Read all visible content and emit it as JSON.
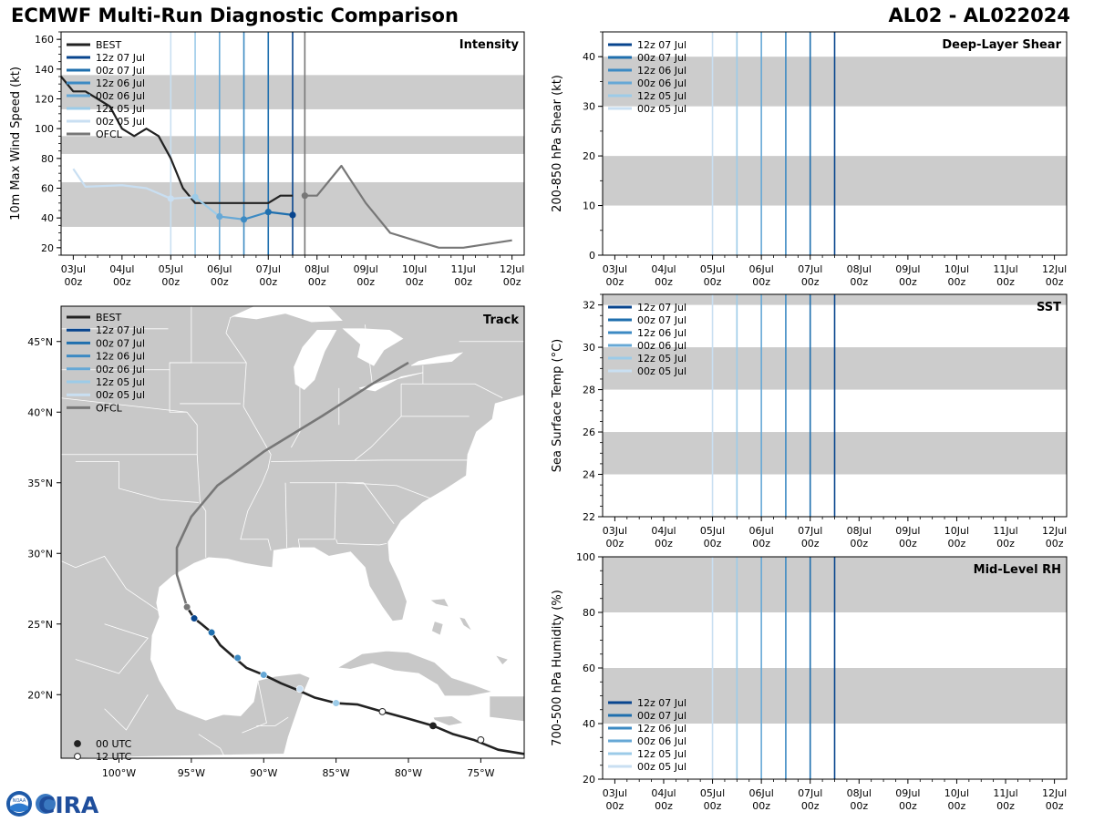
{
  "header": {
    "title": "ECMWF Multi-Run Diagnostic Comparison",
    "storm": "AL02 - AL022024"
  },
  "logo": {
    "text": "CIRA",
    "badge_text": "NOAA"
  },
  "colors": {
    "BEST": "#222222",
    "OFCL": "#777777",
    "12z 07 Jul": "#08458e",
    "00z 07 Jul": "#1f6fae",
    "12z 06 Jul": "#3c8ac3",
    "00z 06 Jul": "#66a8d6",
    "12z 05 Jul": "#9ccbe8",
    "00z 05 Jul": "#c9dff2",
    "shade": "#cccccc",
    "land": "#c8c8c8"
  },
  "time_axis": {
    "tick_labels": [
      "03Jul\n00z",
      "04Jul\n00z",
      "05Jul\n00z",
      "06Jul\n00z",
      "07Jul\n00z",
      "08Jul\n00z",
      "09Jul\n00z",
      "10Jul\n00z",
      "11Jul\n00z",
      "12Jul\n00z"
    ],
    "range_hours": [
      -6,
      222
    ],
    "run_line_hours": [
      48,
      60,
      72,
      84,
      96,
      108,
      114
    ]
  },
  "chart_data": [
    {
      "id": "intensity",
      "type": "line",
      "title": "Intensity",
      "xlabel": "",
      "ylabel": "10m Max Wind Speed (kt)",
      "ylim": [
        15,
        165
      ],
      "yticks": [
        20,
        40,
        60,
        80,
        100,
        120,
        140,
        160
      ],
      "shaded_bands": [
        [
          34,
          64
        ],
        [
          83,
          95
        ],
        [
          113,
          136
        ]
      ],
      "legend": [
        "BEST",
        "12z 07 Jul",
        "00z 07 Jul",
        "12z 06 Jul",
        "00z 06 Jul",
        "12z 05 Jul",
        "00z 05 Jul",
        "OFCL"
      ],
      "series": [
        {
          "name": "BEST",
          "x": [
            -6,
            0,
            6,
            12,
            18,
            24,
            30,
            36,
            42,
            48,
            54,
            60,
            66,
            72,
            84,
            96,
            102,
            108
          ],
          "y": [
            135,
            125,
            125,
            120,
            115,
            100,
            95,
            100,
            95,
            80,
            60,
            50,
            50,
            50,
            50,
            50,
            55,
            55
          ]
        },
        {
          "name": "12z 07 Jul",
          "x": [
            108
          ],
          "y": [
            42
          ]
        },
        {
          "name": "00z 07 Jul",
          "x": [
            96,
            108
          ],
          "y": [
            44,
            42
          ]
        },
        {
          "name": "12z 06 Jul",
          "x": [
            84,
            96
          ],
          "y": [
            39,
            44
          ]
        },
        {
          "name": "00z 06 Jul",
          "x": [
            72,
            84
          ],
          "y": [
            41,
            39
          ]
        },
        {
          "name": "12z 05 Jul",
          "x": [
            60,
            72
          ],
          "y": [
            54,
            41
          ]
        },
        {
          "name": "00z 05 Jul",
          "x": [
            0,
            6,
            24,
            36,
            48,
            60
          ],
          "y": [
            73,
            61,
            62,
            60,
            53,
            54
          ]
        },
        {
          "name": "OFCL",
          "x": [
            114,
            120,
            132,
            144,
            156,
            168,
            180,
            192,
            216
          ],
          "y": [
            55,
            55,
            75,
            50,
            30,
            25,
            20,
            20,
            25
          ]
        }
      ],
      "init_markers": [
        {
          "run": "00z 05 Jul",
          "x": 48,
          "y": 53
        },
        {
          "run": "12z 05 Jul",
          "x": 60,
          "y": 54
        },
        {
          "run": "00z 06 Jul",
          "x": 72,
          "y": 41
        },
        {
          "run": "12z 06 Jul",
          "x": 84,
          "y": 39
        },
        {
          "run": "00z 07 Jul",
          "x": 96,
          "y": 44
        },
        {
          "run": "12z 07 Jul",
          "x": 108,
          "y": 42
        },
        {
          "run": "OFCL",
          "x": 114,
          "y": 55
        }
      ]
    },
    {
      "id": "shear",
      "type": "line",
      "title": "Deep-Layer Shear",
      "xlabel": "",
      "ylabel": "200-850 hPa Shear (kt)",
      "ylim": [
        0,
        45
      ],
      "yticks": [
        0,
        10,
        20,
        30,
        40
      ],
      "shaded_bands": [
        [
          10,
          20
        ],
        [
          30,
          40
        ]
      ],
      "legend": [
        "12z 07 Jul",
        "00z 07 Jul",
        "12z 06 Jul",
        "00z 06 Jul",
        "12z 05 Jul",
        "00z 05 Jul"
      ],
      "series": []
    },
    {
      "id": "sst",
      "type": "line",
      "title": "SST",
      "xlabel": "",
      "ylabel": "Sea Surface Temp (°C)",
      "ylim": [
        22,
        32.5
      ],
      "yticks": [
        22,
        24,
        26,
        28,
        30,
        32
      ],
      "shaded_bands": [
        [
          24,
          26
        ],
        [
          28,
          30
        ],
        [
          32,
          32.5
        ]
      ],
      "legend": [
        "12z 07 Jul",
        "00z 07 Jul",
        "12z 06 Jul",
        "00z 06 Jul",
        "12z 05 Jul",
        "00z 05 Jul"
      ],
      "series": []
    },
    {
      "id": "rh",
      "type": "line",
      "title": "Mid-Level RH",
      "xlabel": "",
      "ylabel": "700-500 hPa Humidity (%)",
      "ylim": [
        20,
        100
      ],
      "yticks": [
        20,
        40,
        60,
        80,
        100
      ],
      "shaded_bands": [
        [
          40,
          60
        ],
        [
          80,
          100
        ]
      ],
      "legend": [
        "12z 07 Jul",
        "00z 07 Jul",
        "12z 06 Jul",
        "00z 06 Jul",
        "12z 05 Jul",
        "00z 05 Jul"
      ],
      "series": []
    },
    {
      "id": "track",
      "type": "scatter",
      "title": "Track",
      "xlabel": "",
      "ylabel": "",
      "lon_range": [
        -104,
        -72
      ],
      "lat_range": [
        15.5,
        47.5
      ],
      "lon_ticks": [
        -100,
        -95,
        -90,
        -85,
        -80,
        -75
      ],
      "lon_tick_labels": [
        "100°W",
        "95°W",
        "90°W",
        "85°W",
        "80°W",
        "75°W"
      ],
      "lat_ticks": [
        20,
        25,
        30,
        35,
        40,
        45
      ],
      "lat_tick_labels": [
        "20°N",
        "25°N",
        "30°N",
        "35°N",
        "40°N",
        "45°N"
      ],
      "legend": [
        "BEST",
        "12z 07 Jul",
        "00z 07 Jul",
        "12z 06 Jul",
        "00z 06 Jul",
        "12z 05 Jul",
        "00z 05 Jul",
        "OFCL"
      ],
      "marker_legend": [
        "00 UTC",
        "12 UTC"
      ],
      "series": [
        {
          "name": "BEST",
          "lon": [
            -72,
            -73.8,
            -75.5,
            -76.9,
            -78.3,
            -80,
            -81.8,
            -83.5,
            -85,
            -86.5,
            -87.6,
            -88.8,
            -90,
            -91.2,
            -92,
            -93,
            -93.6,
            -94.3,
            -94.8,
            -95.3
          ],
          "lat": [
            15.8,
            16.1,
            16.8,
            17.2,
            17.8,
            18.3,
            18.8,
            19.3,
            19.4,
            19.8,
            20.3,
            20.8,
            21.4,
            21.9,
            22.6,
            23.5,
            24.4,
            25.0,
            25.4,
            26.2
          ]
        },
        {
          "name": "OFCL",
          "lon": [
            -95.3,
            -96,
            -96,
            -95,
            -93.2,
            -90,
            -86,
            -82.5,
            -80
          ],
          "lat": [
            26.2,
            28.5,
            30.4,
            32.6,
            34.8,
            37.2,
            39.7,
            42.0,
            43.5
          ]
        }
      ],
      "points": [
        {
          "run": "00z 05 Jul",
          "lon": -87.5,
          "lat": 20.4
        },
        {
          "run": "12z 05 Jul",
          "lon": -85.0,
          "lat": 19.4
        },
        {
          "run": "00z 06 Jul",
          "lon": -90.0,
          "lat": 21.4
        },
        {
          "run": "12z 06 Jul",
          "lon": -91.8,
          "lat": 22.6
        },
        {
          "run": "00z 07 Jul",
          "lon": -93.6,
          "lat": 24.4
        },
        {
          "run": "12z 07 Jul",
          "lon": -94.8,
          "lat": 25.4
        },
        {
          "run": "OFCL",
          "lon": -95.3,
          "lat": 26.2
        }
      ],
      "best_markers": [
        {
          "lon": -78.3,
          "lat": 17.8,
          "utc": "00"
        },
        {
          "lon": -75.0,
          "lat": 16.8,
          "utc": "12"
        },
        {
          "lon": -81.8,
          "lat": 18.8,
          "utc": "12"
        }
      ]
    }
  ]
}
